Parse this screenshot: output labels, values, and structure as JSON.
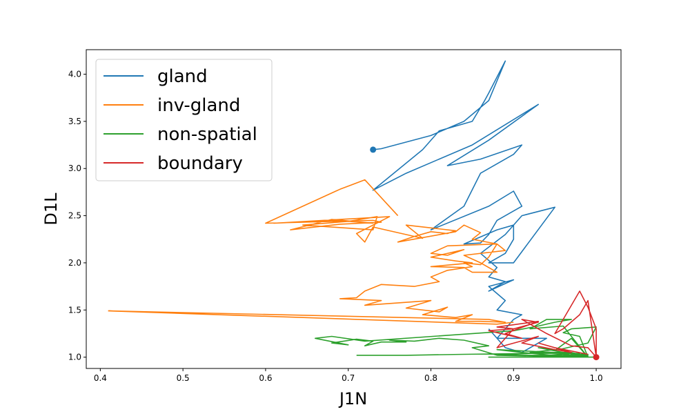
{
  "chart_data": {
    "type": "line",
    "xlabel": "J1N",
    "ylabel": "D1L",
    "xlim": [
      0.383,
      1.03
    ],
    "ylim": [
      0.88,
      4.26
    ],
    "xticks": [
      "0.4",
      "0.5",
      "0.6",
      "0.7",
      "0.8",
      "0.9",
      "1.0"
    ],
    "yticks": [
      "1.0",
      "1.5",
      "2.0",
      "2.5",
      "3.0",
      "3.5",
      "4.0"
    ],
    "grid": false,
    "legend_position": "top-left",
    "series": [
      {
        "name": "gland",
        "color": "#1f77b4",
        "marker_at_start": true,
        "x": [
          0.73,
          0.74,
          0.8,
          0.84,
          0.87,
          0.89,
          0.87,
          0.865,
          0.85,
          0.81,
          0.79,
          0.73,
          0.77,
          0.85,
          0.93,
          0.87,
          0.82,
          0.86,
          0.91,
          0.9,
          0.86,
          0.84,
          0.8,
          0.87,
          0.9,
          0.91,
          0.88,
          0.87,
          0.86,
          0.84,
          0.88,
          0.9,
          0.9,
          0.89,
          0.87,
          0.9,
          0.95,
          0.91,
          0.89,
          0.86,
          0.88,
          0.87,
          0.89,
          0.87,
          0.9,
          0.87,
          0.89,
          0.88,
          0.91,
          0.9,
          0.89,
          0.88,
          0.94,
          0.91,
          0.89,
          0.87
        ],
        "y": [
          3.2,
          3.21,
          3.35,
          3.5,
          3.72,
          4.14,
          3.8,
          3.72,
          3.5,
          3.4,
          3.2,
          2.77,
          2.95,
          3.25,
          3.68,
          3.3,
          3.03,
          3.1,
          3.25,
          3.15,
          2.95,
          2.6,
          2.35,
          2.6,
          2.76,
          2.6,
          2.45,
          2.3,
          2.21,
          2.2,
          2.35,
          2.4,
          2.25,
          2.1,
          2.0,
          2.0,
          2.59,
          2.5,
          2.3,
          2.1,
          1.95,
          1.85,
          1.8,
          1.7,
          1.82,
          1.75,
          1.6,
          1.5,
          1.45,
          1.4,
          1.3,
          1.2,
          1.2,
          1.05,
          1.1,
          1.3
        ]
      },
      {
        "name": "inv-gland",
        "color": "#ff7f0e",
        "marker_at_start": false,
        "x": [
          0.76,
          0.72,
          0.69,
          0.685,
          0.6,
          0.73,
          0.74,
          0.69,
          0.63,
          0.68,
          0.73,
          0.7,
          0.645,
          0.73,
          0.735,
          0.7,
          0.69,
          0.61,
          0.75,
          0.71,
          0.72,
          0.73,
          0.79,
          0.77,
          0.83,
          0.82,
          0.8,
          0.78,
          0.76,
          0.83,
          0.84,
          0.86,
          0.85,
          0.88,
          0.82,
          0.8,
          0.82,
          0.84,
          0.8,
          0.83,
          0.85,
          0.8,
          0.84,
          0.85,
          0.88,
          0.86,
          0.84,
          0.89,
          0.88,
          0.87,
          0.86,
          0.84,
          0.85,
          0.82,
          0.8,
          0.81,
          0.78,
          0.74,
          0.72,
          0.71,
          0.69,
          0.74,
          0.72,
          0.8,
          0.77,
          0.81,
          0.82,
          0.79,
          0.83,
          0.85,
          0.83,
          0.86,
          0.89,
          0.87,
          0.41,
          0.88,
          0.9
        ],
        "y": [
          2.5,
          2.88,
          2.78,
          2.76,
          2.42,
          2.45,
          2.43,
          2.41,
          2.35,
          2.46,
          2.42,
          2.44,
          2.4,
          2.35,
          2.49,
          2.44,
          2.45,
          2.42,
          2.49,
          2.31,
          2.22,
          2.38,
          2.26,
          2.4,
          2.34,
          2.31,
          2.33,
          2.28,
          2.22,
          2.33,
          2.4,
          2.32,
          2.25,
          2.2,
          2.18,
          2.1,
          2.08,
          2.14,
          2.06,
          2.02,
          2.0,
          1.96,
          1.95,
          1.9,
          1.9,
          2.0,
          2.08,
          2.13,
          2.2,
          2.06,
          1.98,
          2.0,
          1.96,
          1.92,
          1.85,
          1.8,
          1.75,
          1.77,
          1.7,
          1.63,
          1.62,
          1.6,
          1.55,
          1.6,
          1.52,
          1.48,
          1.53,
          1.45,
          1.42,
          1.45,
          1.38,
          1.38,
          1.37,
          1.4,
          1.49,
          1.35,
          1.37
        ]
      },
      {
        "name": "non-spatial",
        "color": "#2ca02c",
        "marker_at_start": false,
        "x": [
          0.71,
          0.77,
          0.84,
          0.93,
          0.98,
          0.97,
          0.91,
          0.88,
          0.85,
          0.87,
          0.84,
          0.81,
          0.78,
          0.75,
          0.77,
          0.74,
          0.72,
          0.73,
          0.71,
          0.68,
          0.7,
          0.66,
          0.68,
          0.72,
          0.9,
          0.93,
          0.95,
          0.97,
          0.94,
          0.92,
          0.96,
          0.99,
          0.98,
          0.97,
          0.95,
          0.99,
          1.0,
          0.97,
          0.96,
          0.98,
          0.99,
          0.93,
          0.95,
          0.92,
          0.99,
          0.96,
          0.97,
          0.91,
          0.88,
          0.95,
          0.98,
          0.99,
          0.94,
          0.96,
          0.97,
          0.93,
          0.99,
          0.88,
          0.94,
          0.97,
          0.98,
          0.99,
          0.96,
          0.87,
          0.91,
          0.96,
          1.0
        ],
        "y": [
          1.02,
          1.02,
          1.03,
          1.04,
          1.04,
          1.02,
          1.02,
          1.02,
          1.1,
          1.12,
          1.18,
          1.2,
          1.17,
          1.18,
          1.16,
          1.16,
          1.12,
          1.17,
          1.19,
          1.15,
          1.13,
          1.2,
          1.22,
          1.17,
          1.28,
          1.33,
          1.37,
          1.4,
          1.4,
          1.3,
          1.33,
          1.0,
          1.1,
          1.2,
          1.07,
          1.15,
          1.32,
          1.3,
          1.26,
          1.22,
          1.0,
          1.1,
          1.08,
          1.05,
          1.03,
          1.02,
          1.0,
          1.05,
          1.08,
          1.05,
          1.03,
          1.02,
          1.0,
          1.02,
          1.04,
          1.01,
          1.0,
          1.02,
          1.05,
          1.05,
          1.03,
          1.01,
          1.0,
          1.0,
          1.0,
          1.0,
          1.0
        ]
      },
      {
        "name": "boundary",
        "color": "#d62728",
        "marker_at_start": true,
        "x": [
          1.0,
          1.0,
          0.99,
          0.98,
          0.96,
          0.95,
          0.96,
          0.98,
          0.99,
          1.0,
          0.99,
          0.97,
          0.94,
          0.91,
          0.93,
          0.9,
          0.88,
          0.93,
          0.89,
          0.91,
          0.87,
          0.9,
          0.88,
          0.93,
          0.91,
          0.95,
          0.97,
          0.93,
          0.95,
          0.99
        ],
        "y": [
          1.0,
          1.3,
          1.53,
          1.7,
          1.4,
          1.25,
          1.3,
          1.45,
          1.6,
          1.0,
          1.1,
          1.12,
          1.25,
          1.4,
          1.37,
          1.3,
          1.32,
          1.38,
          1.25,
          1.2,
          1.28,
          1.3,
          1.1,
          1.22,
          1.15,
          1.08,
          1.05,
          1.15,
          1.1,
          1.03
        ]
      }
    ]
  }
}
